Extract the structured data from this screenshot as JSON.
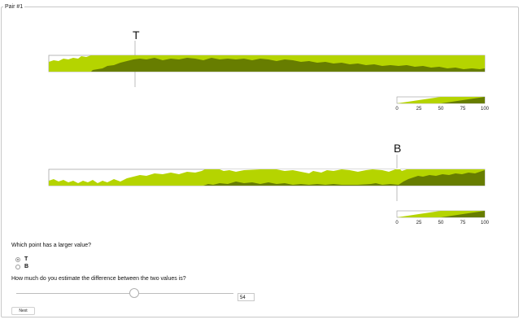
{
  "pair_title": "Pair #1",
  "charts": {
    "top": {
      "marker_label": "T",
      "legend_ticks": [
        "0",
        "25",
        "50",
        "75",
        "100"
      ]
    },
    "bottom": {
      "marker_label": "B",
      "legend_ticks": [
        "0",
        "25",
        "50",
        "75",
        "100"
      ]
    }
  },
  "colors": {
    "light_band": "#b5d400",
    "dark_band": "#677d00",
    "border": "#9a9a9a",
    "marker_line": "#bdbdbd"
  },
  "question1": "Which point has a larger value?",
  "options": [
    {
      "label": "T",
      "checked": true
    },
    {
      "label": "B",
      "checked": false
    }
  ],
  "question2": "How much do you estimate the difference between the two values is?",
  "slider": {
    "value": "54",
    "min": 0,
    "max": 100
  },
  "next_label": "Next"
}
